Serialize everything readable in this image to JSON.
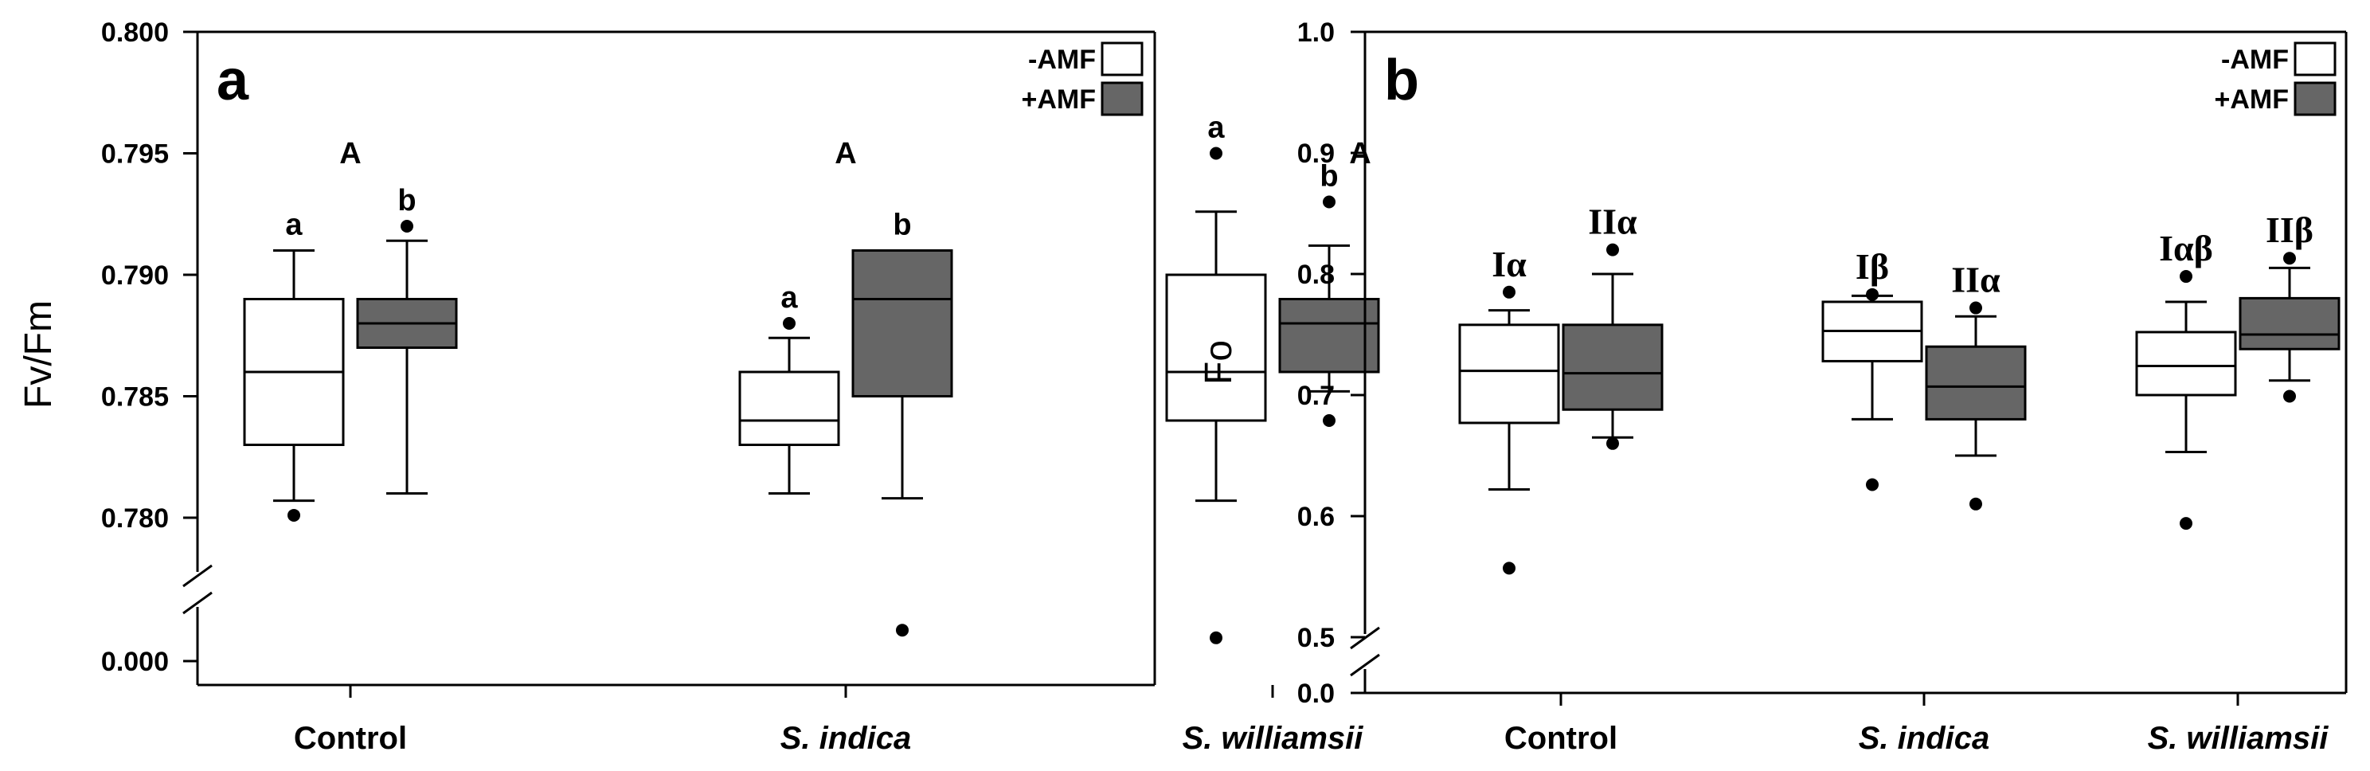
{
  "legend": {
    "neg_label": "-AMF",
    "pos_label": "+AMF",
    "neg_color": "#ffffff",
    "pos_color": "#666666"
  },
  "chart_data": [
    {
      "panel": "a",
      "type": "box",
      "ylabel": "Fv/Fm",
      "categories": [
        "Control",
        "S. indica",
        "S. williamsii"
      ],
      "categories_italic": [
        false,
        true,
        true
      ],
      "yticks": [
        "0.800",
        "0.795",
        "0.790",
        "0.785",
        "0.780"
      ],
      "ylim": [
        0.78,
        0.8
      ],
      "axis_break": true,
      "break_tick": "0.000",
      "group_letters": [
        "A",
        "A",
        "A"
      ],
      "series": [
        {
          "name": "-AMF",
          "color": "#ffffff",
          "boxes": [
            {
              "min": 0.7807,
              "q1": 0.783,
              "median": 0.786,
              "q3": 0.789,
              "max": 0.791,
              "outliers": [
                0.7801
              ],
              "outliers_below_break": [],
              "letter": "a"
            },
            {
              "min": 0.781,
              "q1": 0.783,
              "median": 0.784,
              "q3": 0.786,
              "max": 0.7874,
              "outliers": [
                0.788
              ],
              "outliers_below_break": [],
              "letter": "a"
            },
            {
              "min": 0.7807,
              "q1": 0.784,
              "median": 0.786,
              "q3": 0.79,
              "max": 0.7926,
              "outliers": [
                0.795
              ],
              "outliers_below_break": [
                0.6
              ],
              "letter": "a"
            }
          ]
        },
        {
          "name": "+AMF",
          "color": "#666666",
          "boxes": [
            {
              "min": 0.781,
              "q1": 0.787,
              "median": 0.788,
              "q3": 0.789,
              "max": 0.7914,
              "outliers": [
                0.792
              ],
              "outliers_below_break": [],
              "letter": "b"
            },
            {
              "min": 0.7808,
              "q1": 0.785,
              "median": 0.789,
              "q3": 0.791,
              "max": 0.791,
              "outliers": [],
              "outliers_below_break": [
                0.4
              ],
              "letter": "b"
            },
            {
              "min": 0.7852,
              "q1": 0.786,
              "median": 0.788,
              "q3": 0.789,
              "max": 0.7912,
              "outliers": [
                0.793,
                0.784
              ],
              "outliers_below_break": [],
              "letter": "b"
            }
          ]
        }
      ]
    },
    {
      "panel": "b",
      "type": "box",
      "ylabel": "Fo",
      "categories": [
        "Control",
        "S. indica",
        "S. williamsii"
      ],
      "categories_italic": [
        false,
        true,
        true
      ],
      "yticks": [
        "1.0",
        "0.9",
        "0.8",
        "0.7",
        "0.6",
        "0.5"
      ],
      "ylim": [
        0.5,
        1.0
      ],
      "axis_break": true,
      "break_tick": "0.0",
      "series": [
        {
          "name": "-AMF",
          "color": "#ffffff",
          "boxes": [
            {
              "min": 0.622,
              "q1": 0.677,
              "median": 0.72,
              "q3": 0.758,
              "max": 0.77,
              "outliers": [
                0.785,
                0.557
              ],
              "letter": "Iα"
            },
            {
              "min": 0.68,
              "q1": 0.728,
              "median": 0.753,
              "q3": 0.777,
              "max": 0.782,
              "outliers": [
                0.783,
                0.626
              ],
              "letter": "Iβ"
            },
            {
              "min": 0.653,
              "q1": 0.7,
              "median": 0.724,
              "q3": 0.752,
              "max": 0.777,
              "outliers": [
                0.798,
                0.594
              ],
              "letter": "Iαβ"
            }
          ]
        },
        {
          "name": "+AMF",
          "color": "#666666",
          "boxes": [
            {
              "min": 0.665,
              "q1": 0.688,
              "median": 0.718,
              "q3": 0.758,
              "max": 0.8,
              "outliers": [
                0.82,
                0.66
              ],
              "letter": "IIα"
            },
            {
              "min": 0.65,
              "q1": 0.68,
              "median": 0.707,
              "q3": 0.74,
              "max": 0.765,
              "outliers": [
                0.772,
                0.61
              ],
              "letter": "IIα"
            },
            {
              "min": 0.712,
              "q1": 0.738,
              "median": 0.75,
              "q3": 0.78,
              "max": 0.805,
              "outliers": [
                0.813,
                0.699
              ],
              "letter": "IIβ"
            }
          ]
        }
      ]
    }
  ]
}
